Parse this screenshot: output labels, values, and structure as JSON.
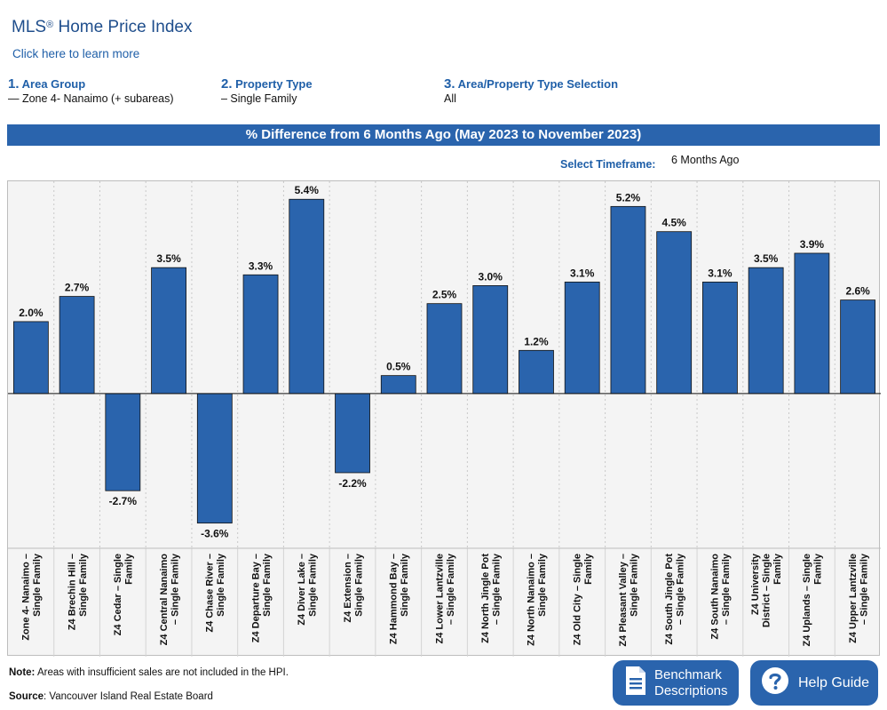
{
  "header": {
    "title": "MLS",
    "title_mark": "®",
    "title_rest": " Home Price Index",
    "learn_more": "Click here to learn more"
  },
  "steps": [
    {
      "num": "1.",
      "label": "Area Group",
      "value": "— Zone 4- Nanaimo (+ subareas)"
    },
    {
      "num": "2.",
      "label": "Property Type",
      "value": "– Single Family"
    },
    {
      "num": "3.",
      "label": "Area/Property Type Selection",
      "value": "All"
    }
  ],
  "banner": "% Difference from 6 Months Ago (May 2023 to November 2023)",
  "timeframe": {
    "label": "Select Timeframe:",
    "value": "6 Months Ago"
  },
  "chart_data": {
    "type": "bar",
    "title": "% Difference from 6 Months Ago (May 2023 to November 2023)",
    "categories": [
      "Zone 4- Nanaimo – Single Family",
      "Z4 Brechin Hill – Single Family",
      "Z4 Cedar – Single Family",
      "Z4 Central Nanaimo – Single Family",
      "Z4 Chase River – Single Family",
      "Z4 Departure Bay – Single Family",
      "Z4 Diver Lake – Single Family",
      "Z4 Extension – Single Family",
      "Z4 Hammond Bay – Single Family",
      "Z4 Lower Lantzville – Single Family",
      "Z4 North Jingle Pot – Single Family",
      "Z4 North Nanaimo – Single Family",
      "Z4 Old City – Single Family",
      "Z4 Pleasant Valley – Single Family",
      "Z4 South Jingle Pot – Single Family",
      "Z4 South Nanaimo – Single Family",
      "Z4 University District – Single Family",
      "Z4 Uplands – Single Family",
      "Z4 Upper Lantzville – Single Family"
    ],
    "label_lines": [
      [
        "Zone 4- Nanaimo –",
        "Single Family"
      ],
      [
        "Z4 Brechin Hill –",
        "Single Family"
      ],
      [
        "Z4 Cedar – Single",
        "Family"
      ],
      [
        "Z4 Central Nanaimo",
        "– Single Family"
      ],
      [
        "Z4 Chase River –",
        "Single Family"
      ],
      [
        "Z4 Departure Bay –",
        "Single Family"
      ],
      [
        "Z4 Diver Lake –",
        "Single Family"
      ],
      [
        "Z4 Extension –",
        "Single Family"
      ],
      [
        "Z4 Hammond Bay –",
        "Single Family"
      ],
      [
        "Z4 Lower Lantzville",
        "– Single Family"
      ],
      [
        "Z4 North Jingle Pot",
        "– Single Family"
      ],
      [
        "Z4 North Nanaimo –",
        "Single Family"
      ],
      [
        "Z4 Old City – Single",
        "Family"
      ],
      [
        "Z4 Pleasant Valley –",
        "Single Family"
      ],
      [
        "Z4 South Jingle Pot",
        "– Single Family"
      ],
      [
        "Z4 South Nanaimo",
        "– Single Family"
      ],
      [
        "Z4 University",
        "District – Single",
        "Family"
      ],
      [
        "Z4 Uplands – Single",
        "Family"
      ],
      [
        "Z4 Upper Lantzville",
        "– Single Family"
      ]
    ],
    "values": [
      2.0,
      2.7,
      -2.7,
      3.5,
      -3.6,
      3.3,
      5.4,
      -2.2,
      0.5,
      2.5,
      3.0,
      1.2,
      3.1,
      5.2,
      4.5,
      3.1,
      3.5,
      3.9,
      2.6
    ],
    "value_labels": [
      "2.0%",
      "2.7%",
      "-2.7%",
      "3.5%",
      "-3.6%",
      "3.3%",
      "5.4%",
      "-2.2%",
      "0.5%",
      "2.5%",
      "3.0%",
      "1.2%",
      "3.1%",
      "5.2%",
      "4.5%",
      "3.1%",
      "3.5%",
      "3.9%",
      "2.6%"
    ],
    "ylim": [
      -4.3,
      5.9
    ],
    "grid": true,
    "bar_color": "#2a64ad"
  },
  "footer": {
    "note_label": "Note:",
    "note_text": " Areas with insufficient sales are not included in the HPI.",
    "source_label": "Source",
    "source_text": ": Vancouver Island Real Estate Board"
  },
  "buttons": {
    "benchmark_line1": "Benchmark",
    "benchmark_line2": "Descriptions",
    "help": "Help Guide"
  }
}
